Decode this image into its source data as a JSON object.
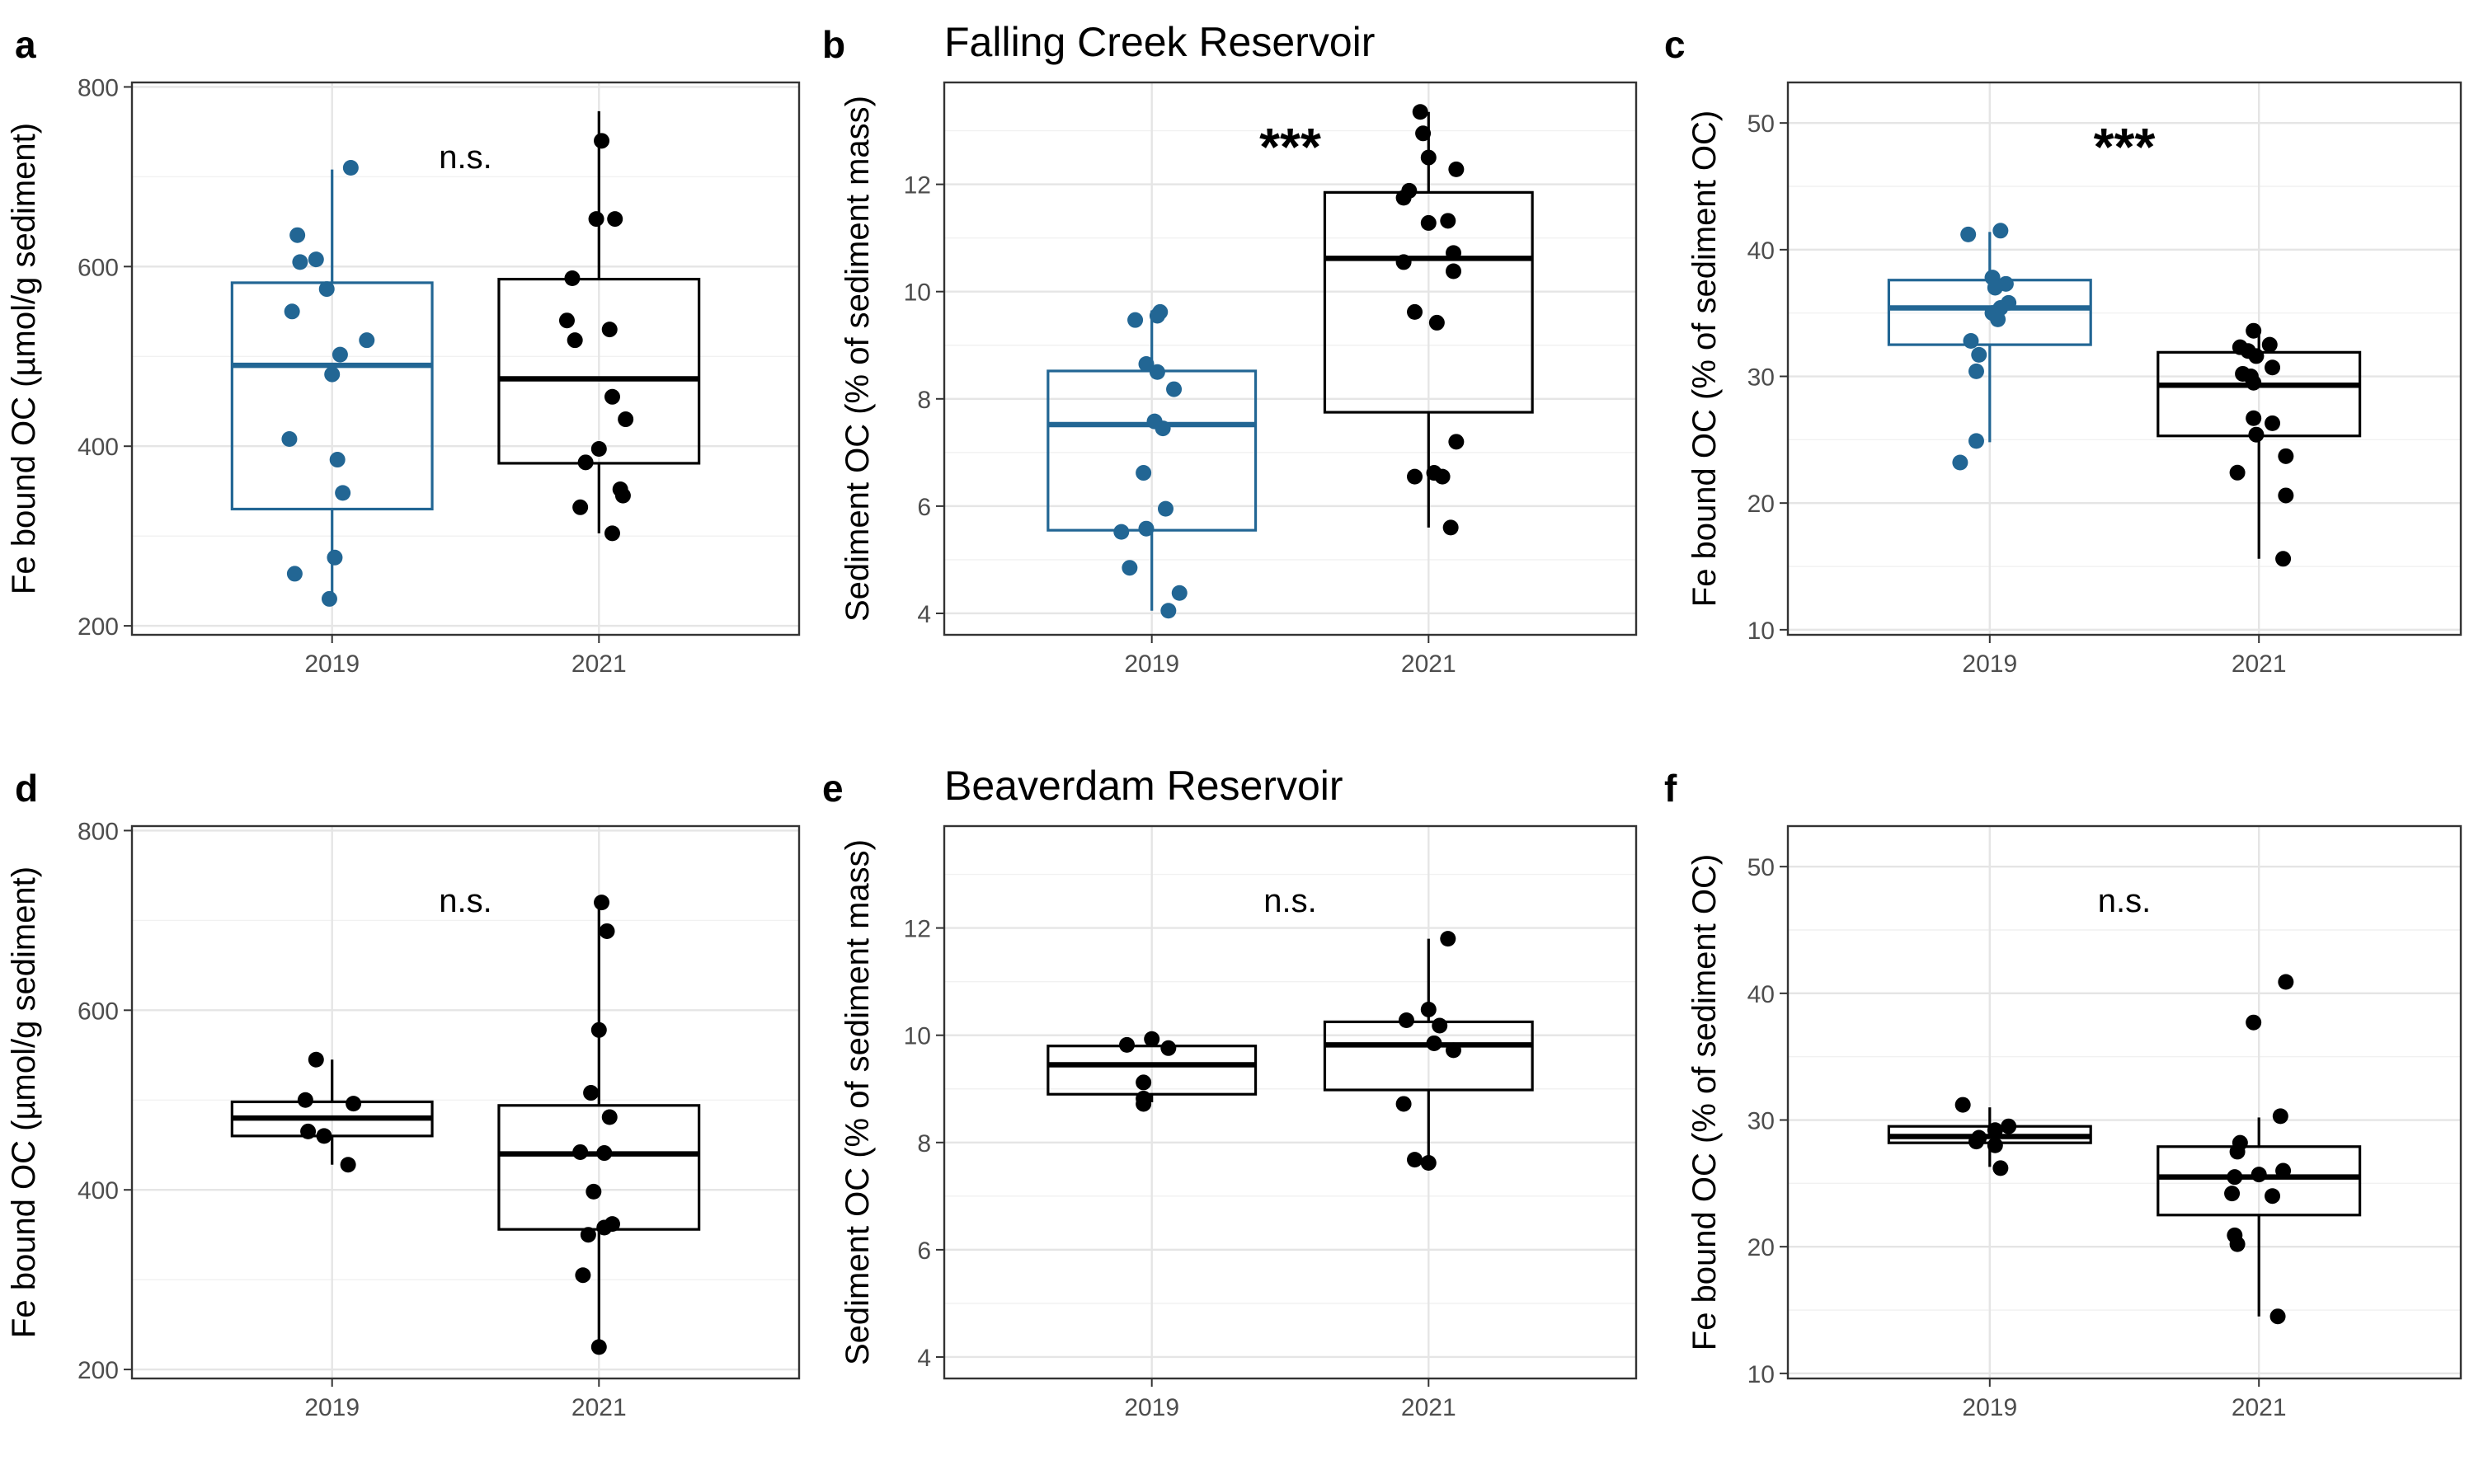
{
  "colors": {
    "y2019": "#226694",
    "y2021": "#000000",
    "grid": "#e5e5e5"
  },
  "chart_data": [
    {
      "panel": "a",
      "type": "box",
      "title": "",
      "ylabel": "Fe bound OC (µmol/g sediment)",
      "xlabel": "",
      "categories": [
        "2019",
        "2021"
      ],
      "ylim": [
        190,
        805
      ],
      "yticks": [
        200,
        400,
        600,
        800
      ],
      "yticklabels": [
        "200",
        "400",
        "600",
        "800"
      ],
      "annotation": "n.s.",
      "annotation_large": false,
      "series": [
        {
          "category": "2019",
          "color": "#226694",
          "box": {
            "q1": 330,
            "median": 490,
            "q3": 582,
            "whisker_low": 230,
            "whisker_high": 708
          },
          "points": [
            710,
            635,
            608,
            605,
            575,
            550,
            518,
            502,
            480,
            408,
            385,
            348,
            276,
            258,
            230
          ],
          "jitter": [
            0.07,
            -0.13,
            -0.06,
            -0.12,
            -0.02,
            -0.15,
            0.13,
            0.03,
            0.0,
            -0.16,
            0.02,
            0.04,
            0.01,
            -0.14,
            -0.01
          ]
        },
        {
          "category": "2021",
          "color": "#000000",
          "box": {
            "q1": 381,
            "median": 475,
            "q3": 586,
            "whisker_low": 303,
            "whisker_high": 773
          },
          "points": [
            740,
            653,
            653,
            587,
            540,
            530,
            518,
            455,
            430,
            397,
            382,
            352,
            345,
            332,
            303
          ],
          "jitter": [
            0.01,
            -0.01,
            0.06,
            -0.1,
            -0.12,
            0.04,
            -0.09,
            0.05,
            0.1,
            0.0,
            -0.05,
            0.08,
            0.09,
            -0.07,
            0.05
          ]
        }
      ]
    },
    {
      "panel": "b",
      "type": "box",
      "title": "Falling Creek Reservoir",
      "ylabel": "Sediment OC (% of sediment mass)",
      "xlabel": "",
      "categories": [
        "2019",
        "2021"
      ],
      "ylim": [
        3.6,
        13.9
      ],
      "yticks": [
        4,
        6,
        8,
        10,
        12
      ],
      "yticklabels": [
        "4",
        "6",
        "8",
        "10",
        "12"
      ],
      "annotation": "***",
      "annotation_large": true,
      "series": [
        {
          "category": "2019",
          "color": "#226694",
          "box": {
            "q1": 5.55,
            "median": 7.52,
            "q3": 8.52,
            "whisker_low": 4.05,
            "whisker_high": 9.65
          },
          "points": [
            9.62,
            9.55,
            9.47,
            8.65,
            8.5,
            8.18,
            7.58,
            7.45,
            6.62,
            5.95,
            5.58,
            5.52,
            4.85,
            4.38,
            4.05
          ],
          "jitter": [
            0.03,
            0.02,
            -0.06,
            -0.02,
            0.02,
            0.08,
            0.01,
            0.04,
            -0.03,
            0.05,
            -0.02,
            -0.11,
            -0.08,
            0.1,
            0.06
          ]
        },
        {
          "category": "2021",
          "color": "#000000",
          "box": {
            "q1": 7.75,
            "median": 10.62,
            "q3": 11.85,
            "whisker_low": 5.6,
            "whisker_high": 13.35
          },
          "points": [
            13.35,
            12.95,
            12.5,
            12.28,
            11.88,
            11.75,
            11.32,
            11.28,
            10.72,
            10.55,
            10.38,
            9.62,
            9.42,
            7.2,
            6.62,
            6.55,
            6.55,
            5.6
          ],
          "jitter": [
            -0.03,
            -0.02,
            0.0,
            0.1,
            -0.07,
            -0.09,
            0.07,
            0.0,
            0.09,
            -0.09,
            0.09,
            -0.05,
            0.03,
            0.1,
            0.02,
            -0.05,
            0.05,
            0.08
          ]
        }
      ]
    },
    {
      "panel": "c",
      "type": "box",
      "title": "",
      "ylabel": "Fe bound OC (% of sediment OC)",
      "xlabel": "",
      "categories": [
        "2019",
        "2021"
      ],
      "ylim": [
        9.6,
        53.2
      ],
      "yticks": [
        10,
        20,
        30,
        40,
        50
      ],
      "yticklabels": [
        "10",
        "20",
        "30",
        "40",
        "50"
      ],
      "annotation": "***",
      "annotation_large": true,
      "series": [
        {
          "category": "2019",
          "color": "#226694",
          "box": {
            "q1": 32.5,
            "median": 35.4,
            "q3": 37.6,
            "whisker_low": 24.8,
            "whisker_high": 41.4
          },
          "points": [
            41.5,
            41.2,
            37.8,
            37.3,
            37.0,
            35.8,
            35.4,
            35.0,
            34.5,
            32.8,
            31.7,
            30.4,
            24.9,
            23.2
          ],
          "jitter": [
            0.04,
            -0.08,
            0.01,
            0.06,
            0.02,
            0.07,
            0.04,
            0.01,
            0.03,
            -0.07,
            -0.04,
            -0.05,
            -0.05,
            -0.11
          ]
        },
        {
          "category": "2021",
          "color": "#000000",
          "box": {
            "q1": 25.3,
            "median": 29.3,
            "q3": 31.9,
            "whisker_low": 15.6,
            "whisker_high": 33.4
          },
          "points": [
            33.6,
            32.5,
            32.3,
            32.0,
            31.6,
            30.7,
            30.2,
            30.0,
            29.5,
            26.7,
            26.3,
            25.4,
            23.7,
            22.4,
            20.6,
            15.6
          ],
          "jitter": [
            -0.02,
            0.04,
            -0.07,
            -0.04,
            -0.01,
            0.05,
            -0.06,
            -0.03,
            -0.02,
            -0.02,
            0.05,
            -0.01,
            0.1,
            -0.08,
            0.1,
            0.09
          ]
        }
      ]
    },
    {
      "panel": "d",
      "type": "box",
      "title": "",
      "ylabel": "Fe bound OC (µmol/g sediment)",
      "xlabel": "",
      "categories": [
        "2019",
        "2021"
      ],
      "ylim": [
        190,
        805
      ],
      "yticks": [
        200,
        400,
        600,
        800
      ],
      "yticklabels": [
        "200",
        "400",
        "600",
        "800"
      ],
      "annotation": "n.s.",
      "annotation_large": false,
      "series": [
        {
          "category": "2019",
          "color": "#000000",
          "box": {
            "q1": 460,
            "median": 480,
            "q3": 498,
            "whisker_low": 428,
            "whisker_high": 545
          },
          "points": [
            545,
            500,
            496,
            465,
            460,
            428
          ],
          "jitter": [
            -0.06,
            -0.1,
            0.08,
            -0.09,
            -0.03,
            0.06
          ]
        },
        {
          "category": "2021",
          "color": "#000000",
          "box": {
            "q1": 356,
            "median": 440,
            "q3": 494,
            "whisker_low": 223,
            "whisker_high": 718
          },
          "points": [
            720,
            688,
            578,
            508,
            481,
            442,
            441,
            398,
            362,
            358,
            350,
            305,
            225
          ],
          "jitter": [
            0.01,
            0.03,
            0.0,
            -0.03,
            0.04,
            -0.07,
            0.02,
            -0.02,
            0.05,
            0.02,
            -0.04,
            -0.06,
            0.0
          ]
        }
      ]
    },
    {
      "panel": "e",
      "type": "box",
      "title": "Beaverdam Reservoir",
      "ylabel": "Sediment OC (% of sediment mass)",
      "xlabel": "",
      "categories": [
        "2019",
        "2021"
      ],
      "ylim": [
        3.6,
        13.9
      ],
      "yticks": [
        4,
        6,
        8,
        10,
        12
      ],
      "yticklabels": [
        "4",
        "6",
        "8",
        "10",
        "12"
      ],
      "annotation": "n.s.",
      "annotation_large": false,
      "series": [
        {
          "category": "2019",
          "color": "#000000",
          "box": {
            "q1": 8.9,
            "median": 9.45,
            "q3": 9.8,
            "whisker_low": 8.75,
            "whisker_high": 9.95
          },
          "points": [
            9.93,
            9.82,
            9.76,
            9.12,
            8.82,
            8.72
          ],
          "jitter": [
            0.0,
            -0.09,
            0.06,
            -0.03,
            -0.03,
            -0.03
          ]
        },
        {
          "category": "2021",
          "color": "#000000",
          "box": {
            "q1": 8.98,
            "median": 9.82,
            "q3": 10.25,
            "whisker_low": 7.65,
            "whisker_high": 11.8
          },
          "points": [
            11.8,
            10.48,
            10.28,
            10.18,
            9.85,
            9.72,
            8.72,
            7.68,
            7.62
          ],
          "jitter": [
            0.07,
            0.0,
            -0.08,
            0.04,
            0.02,
            0.09,
            -0.09,
            -0.05,
            0.0
          ]
        }
      ]
    },
    {
      "panel": "f",
      "type": "box",
      "title": "",
      "ylabel": "Fe bound OC (% of sediment OC)",
      "xlabel": "",
      "categories": [
        "2019",
        "2021"
      ],
      "ylim": [
        9.6,
        53.2
      ],
      "yticks": [
        10,
        20,
        30,
        40,
        50
      ],
      "yticklabels": [
        "10",
        "20",
        "30",
        "40",
        "50"
      ],
      "annotation": "n.s.",
      "annotation_large": false,
      "series": [
        {
          "category": "2019",
          "color": "#000000",
          "box": {
            "q1": 28.2,
            "median": 28.7,
            "q3": 29.5,
            "whisker_low": 26.3,
            "whisker_high": 31.0
          },
          "points": [
            31.2,
            29.5,
            29.2,
            28.6,
            28.3,
            28.0,
            26.2
          ],
          "jitter": [
            -0.1,
            0.07,
            0.02,
            -0.04,
            -0.05,
            0.02,
            0.04
          ]
        },
        {
          "category": "2021",
          "color": "#000000",
          "box": {
            "q1": 22.5,
            "median": 25.5,
            "q3": 27.9,
            "whisker_low": 14.5,
            "whisker_high": 30.2
          },
          "points": [
            40.9,
            37.7,
            30.3,
            28.2,
            27.5,
            26.0,
            25.7,
            25.5,
            24.2,
            24.0,
            20.9,
            20.2,
            14.5
          ],
          "jitter": [
            0.1,
            -0.02,
            0.08,
            -0.07,
            -0.08,
            0.09,
            0.0,
            -0.09,
            -0.1,
            0.05,
            -0.09,
            -0.08,
            0.07
          ]
        }
      ]
    }
  ]
}
